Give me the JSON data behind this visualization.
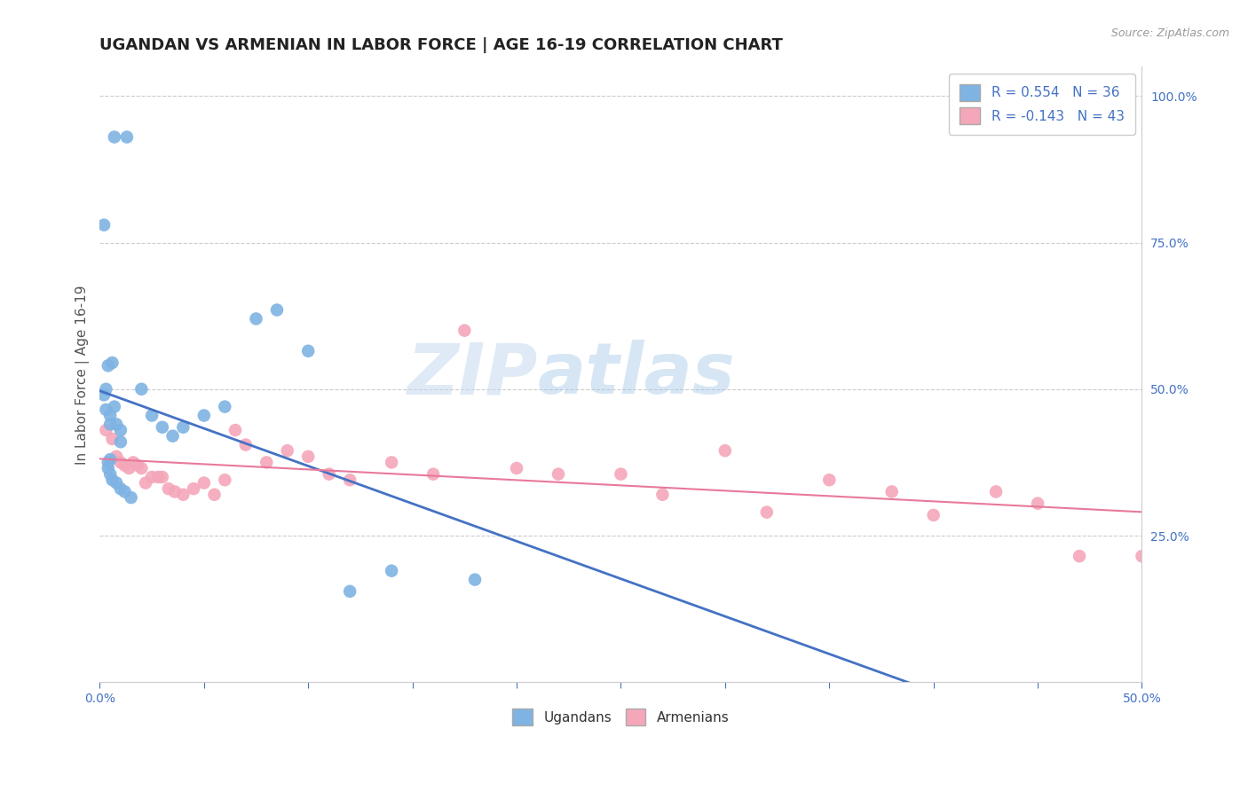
{
  "title": "UGANDAN VS ARMENIAN IN LABOR FORCE | AGE 16-19 CORRELATION CHART",
  "source": "Source: ZipAtlas.com",
  "ylabel": "In Labor Force | Age 16-19",
  "xlim": [
    0.0,
    0.5
  ],
  "ylim": [
    0.0,
    1.05
  ],
  "xticks": [
    0.0,
    0.05,
    0.1,
    0.15,
    0.2,
    0.25,
    0.3,
    0.35,
    0.4,
    0.45,
    0.5
  ],
  "ytick_positions": [
    0.25,
    0.5,
    0.75,
    1.0
  ],
  "ugandan_color": "#7eb3e3",
  "armenian_color": "#f4a7b9",
  "trendline_ugandan_color": "#4472c4",
  "trendline_armenian_color": "#e8799a",
  "legend_text_color": "#4472c4",
  "R_ugandan": 0.554,
  "N_ugandan": 36,
  "R_armenian": -0.143,
  "N_armenian": 43,
  "ugandan_x": [
    0.007,
    0.013,
    0.002,
    0.004,
    0.006,
    0.003,
    0.002,
    0.007,
    0.003,
    0.005,
    0.005,
    0.008,
    0.01,
    0.01,
    0.005,
    0.004,
    0.004,
    0.005,
    0.006,
    0.008,
    0.01,
    0.012,
    0.015,
    0.02,
    0.025,
    0.03,
    0.035,
    0.04,
    0.05,
    0.06,
    0.075,
    0.085,
    0.1,
    0.12,
    0.14,
    0.18
  ],
  "ugandan_y": [
    0.93,
    0.93,
    0.78,
    0.54,
    0.545,
    0.5,
    0.49,
    0.47,
    0.465,
    0.455,
    0.44,
    0.44,
    0.43,
    0.41,
    0.38,
    0.375,
    0.365,
    0.355,
    0.345,
    0.34,
    0.33,
    0.325,
    0.315,
    0.5,
    0.455,
    0.435,
    0.42,
    0.435,
    0.455,
    0.47,
    0.62,
    0.635,
    0.565,
    0.155,
    0.19,
    0.175
  ],
  "armenian_x": [
    0.003,
    0.006,
    0.008,
    0.01,
    0.012,
    0.014,
    0.016,
    0.018,
    0.02,
    0.022,
    0.025,
    0.028,
    0.03,
    0.033,
    0.036,
    0.04,
    0.045,
    0.05,
    0.055,
    0.06,
    0.065,
    0.07,
    0.08,
    0.09,
    0.1,
    0.11,
    0.12,
    0.14,
    0.16,
    0.175,
    0.2,
    0.22,
    0.25,
    0.27,
    0.3,
    0.32,
    0.35,
    0.38,
    0.4,
    0.43,
    0.45,
    0.47,
    0.5
  ],
  "armenian_y": [
    0.43,
    0.415,
    0.385,
    0.375,
    0.37,
    0.365,
    0.375,
    0.37,
    0.365,
    0.34,
    0.35,
    0.35,
    0.35,
    0.33,
    0.325,
    0.32,
    0.33,
    0.34,
    0.32,
    0.345,
    0.43,
    0.405,
    0.375,
    0.395,
    0.385,
    0.355,
    0.345,
    0.375,
    0.355,
    0.6,
    0.365,
    0.355,
    0.355,
    0.32,
    0.395,
    0.29,
    0.345,
    0.325,
    0.285,
    0.325,
    0.305,
    0.215,
    0.215
  ],
  "watermark_text": "ZIP",
  "watermark_text2": "atlas",
  "background_color": "#ffffff",
  "grid_color": "#cccccc",
  "axis_color": "#cccccc",
  "tick_color": "#4472c4",
  "title_fontsize": 13,
  "axis_label_fontsize": 11,
  "tick_fontsize": 10
}
